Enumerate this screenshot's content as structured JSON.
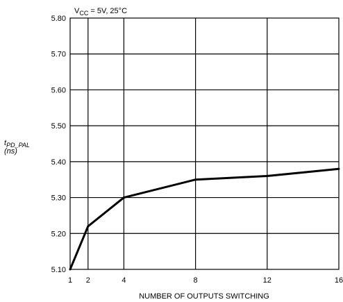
{
  "chart_data": {
    "type": "line",
    "title": "",
    "condition": {
      "prefix": "V",
      "sub": "CC",
      "suffix": " = 5V, 25°C"
    },
    "ylabel": {
      "t": "t",
      "sub": "PD_PAL",
      "unit": "(ns)"
    },
    "xlabel": "NUMBER OF OUTPUTS SWITCHING",
    "xlim": [
      1,
      16
    ],
    "ylim": [
      5.1,
      5.8
    ],
    "x_ticks": [
      1,
      2,
      4,
      8,
      12,
      16
    ],
    "x_tick_labels": [
      "1",
      "2",
      "4",
      "8",
      "12",
      "16"
    ],
    "y_ticks": [
      5.1,
      5.2,
      5.3,
      5.4,
      5.5,
      5.6,
      5.7,
      5.8
    ],
    "y_tick_labels": [
      "5.10",
      "5.20",
      "5.30",
      "5.40",
      "5.50",
      "5.60",
      "5.70",
      "5.80"
    ],
    "grid": true,
    "series": [
      {
        "x": [
          1,
          2,
          4,
          8,
          12,
          16
        ],
        "y": [
          5.1,
          5.22,
          5.3,
          5.35,
          5.36,
          5.38
        ]
      }
    ]
  }
}
